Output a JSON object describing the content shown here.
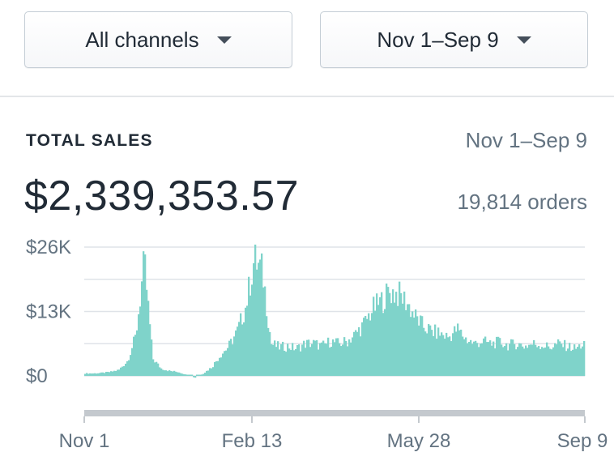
{
  "filters": {
    "channel": {
      "label": "All channels",
      "icon": "caret-down-icon"
    },
    "date_range": {
      "label": "Nov 1–Sep 9",
      "icon": "caret-down-icon"
    }
  },
  "card": {
    "heading": "TOTAL SALES",
    "range": "Nov 1–Sep 9",
    "total": "$2,339,353.57",
    "orders": "19,814 orders"
  },
  "chart_data": {
    "type": "area",
    "title": "",
    "xlabel": "",
    "ylabel": "",
    "color": "#7fd3ca",
    "grid": true,
    "x_tick_labels": [
      "Nov 1",
      "Feb 13",
      "May 28",
      "Sep 9"
    ],
    "y_tick_labels": [
      "$26K",
      "$13K",
      "$0"
    ],
    "y_tick_values": [
      26000,
      13000,
      0
    ],
    "ylim": [
      0,
      26000
    ],
    "x_range": [
      "Nov 1",
      "Sep 9"
    ],
    "series": [
      {
        "values_sampled": [
          500,
          500,
          600,
          800,
          1200,
          3000,
          8000,
          23000,
          3500,
          1500,
          1000,
          800,
          200,
          -400,
          500,
          1800,
          4200,
          6000,
          9000,
          14000,
          23500,
          21000,
          6500,
          5800,
          6000,
          5500,
          6500,
          6600,
          6000,
          7000,
          6500,
          7000,
          8500,
          10500,
          13500,
          15000,
          17000,
          16500,
          15000,
          12000,
          10000,
          9000,
          8500,
          7800,
          9500,
          7500,
          6500,
          7000,
          6500,
          6800,
          6200,
          6500,
          6000,
          6500,
          6200,
          5800,
          6500,
          6000,
          5500,
          6500
        ]
      }
    ]
  }
}
